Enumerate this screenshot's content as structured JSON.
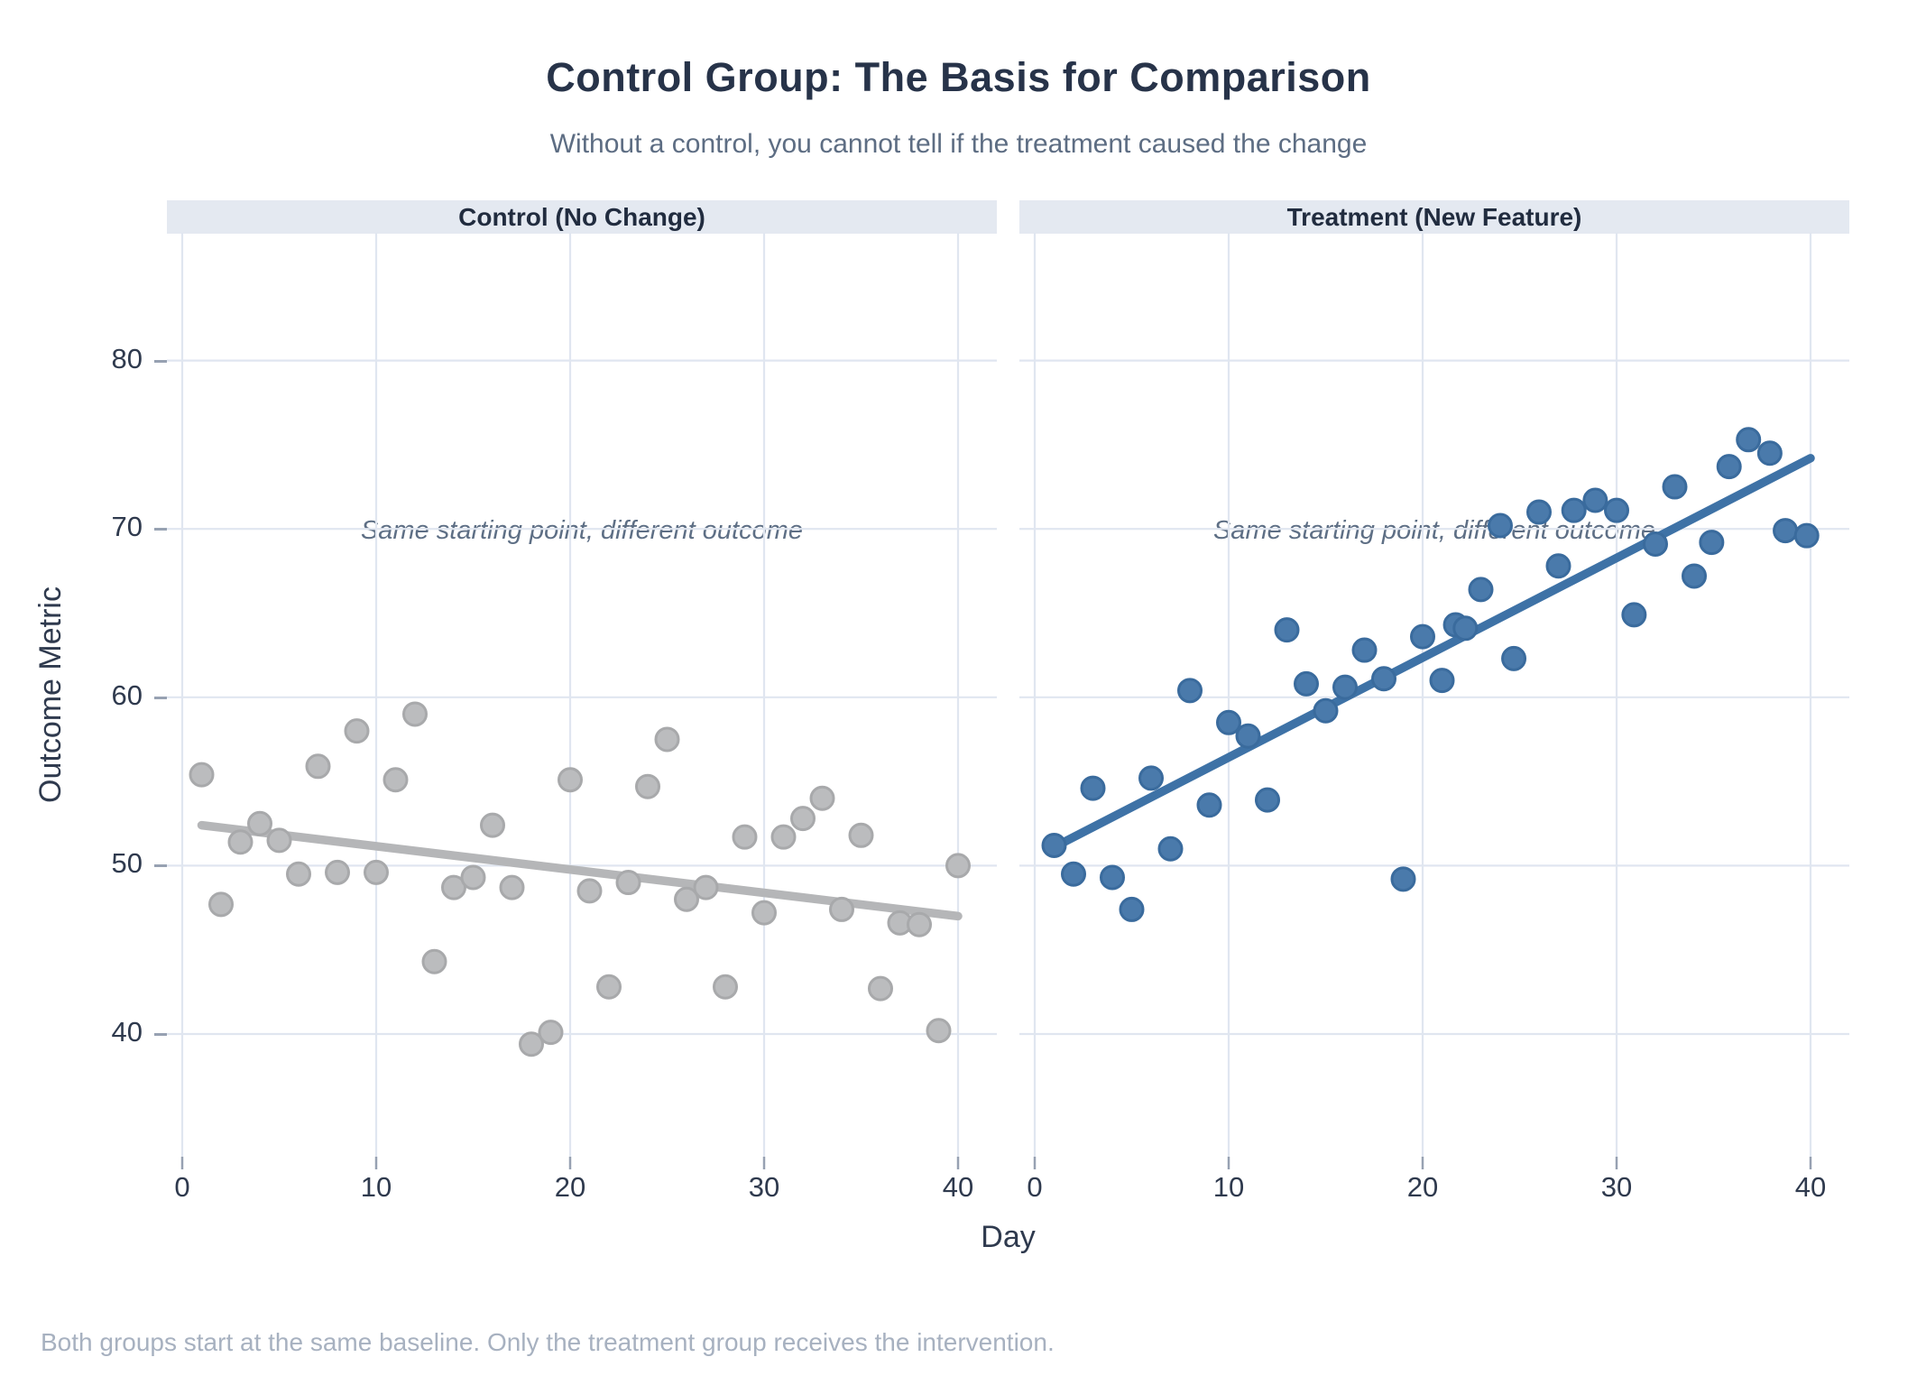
{
  "header": {
    "title": "Control Group: The Basis for Comparison",
    "subtitle": "Without a control, you cannot tell if the treatment caused the change"
  },
  "caption": "Both groups start at the same baseline. Only the treatment group receives the intervention.",
  "style": {
    "background": "#ffffff",
    "title_color": "#273349",
    "subtitle_color": "#5d6d83",
    "strip_bg": "#e4e9f1",
    "strip_text": "#212c3f",
    "annotation_color": "#5e6f85",
    "axis_text": "#2f3a4e",
    "grid_color": "#e0e6f0",
    "tick_color": "#97a1b2",
    "caption_color": "#a7b1c0"
  },
  "chart_data": {
    "type": "scatter",
    "title": "Control Group: The Basis for Comparison",
    "subtitle": "Without a control, you cannot tell if the treatment caused the change",
    "caption": "Both groups start at the same baseline. Only the treatment group receives the intervention.",
    "xlabel": "Day",
    "ylabel": "Outcome Metric",
    "x_ticks": [
      0,
      10,
      20,
      30,
      40
    ],
    "y_ticks": [
      40,
      50,
      60,
      70,
      80
    ],
    "xlim": [
      -0.8,
      42.0
    ],
    "ylim": [
      32.7,
      87.6
    ],
    "grid": true,
    "legend": false,
    "facets": [
      {
        "label": "Control (No Change)",
        "annotation": "Same starting point, different outcome",
        "point_fill": "#bbbcbe",
        "point_stroke": "#a8a9ab",
        "trend_color": "#b5b6b8",
        "trend": {
          "x": [
            1,
            40
          ],
          "y": [
            52.4,
            47.0
          ]
        },
        "x": [
          1,
          2,
          3,
          4,
          5,
          6,
          7,
          8,
          9,
          10,
          11,
          12,
          13,
          14,
          15,
          16,
          17,
          18,
          19,
          20,
          21,
          22,
          23,
          24,
          25,
          26,
          27,
          28,
          29,
          30,
          31,
          32,
          33,
          34,
          35,
          36,
          37,
          38,
          39,
          40
        ],
        "y": [
          55.4,
          47.7,
          51.4,
          52.5,
          51.5,
          49.5,
          55.9,
          49.6,
          58.0,
          49.6,
          55.1,
          59.0,
          44.3,
          48.7,
          49.3,
          52.4,
          48.7,
          39.4,
          40.1,
          55.1,
          48.5,
          42.8,
          49.0,
          54.7,
          57.5,
          48.0,
          48.7,
          42.8,
          51.7,
          47.2,
          51.7,
          52.8,
          54.0,
          47.4,
          51.8,
          42.7,
          46.6,
          46.5,
          40.2,
          50.0
        ]
      },
      {
        "label": "Treatment (New Feature)",
        "annotation": "Same starting point, different outcome",
        "point_fill": "#4a7aab",
        "point_stroke": "#3a6b9d",
        "trend_color": "#3e72a6",
        "trend": {
          "x": [
            1,
            40
          ],
          "y": [
            51.1,
            74.2
          ]
        },
        "x": [
          1,
          2,
          3,
          4,
          5,
          6,
          7,
          8,
          9,
          10,
          11,
          12,
          13,
          14,
          15,
          16,
          17,
          18,
          19,
          20,
          21,
          21.7,
          22.2,
          23,
          24,
          24.7,
          26,
          27,
          27.8,
          28.9,
          30,
          30.9,
          32,
          33,
          34,
          34.9,
          35.8,
          36.8,
          37.9,
          38.7,
          39.8
        ],
        "y": [
          51.2,
          49.5,
          54.6,
          49.3,
          47.4,
          55.2,
          51.0,
          60.4,
          53.6,
          58.5,
          57.7,
          53.9,
          64.0,
          60.8,
          59.2,
          60.6,
          62.8,
          61.1,
          49.2,
          63.6,
          61.0,
          64.3,
          64.1,
          66.4,
          70.2,
          62.3,
          71.0,
          67.8,
          71.1,
          71.7,
          71.1,
          64.9,
          69.1,
          72.5,
          67.2,
          69.2,
          73.7,
          75.3,
          74.5,
          69.9,
          69.6
        ]
      }
    ]
  }
}
